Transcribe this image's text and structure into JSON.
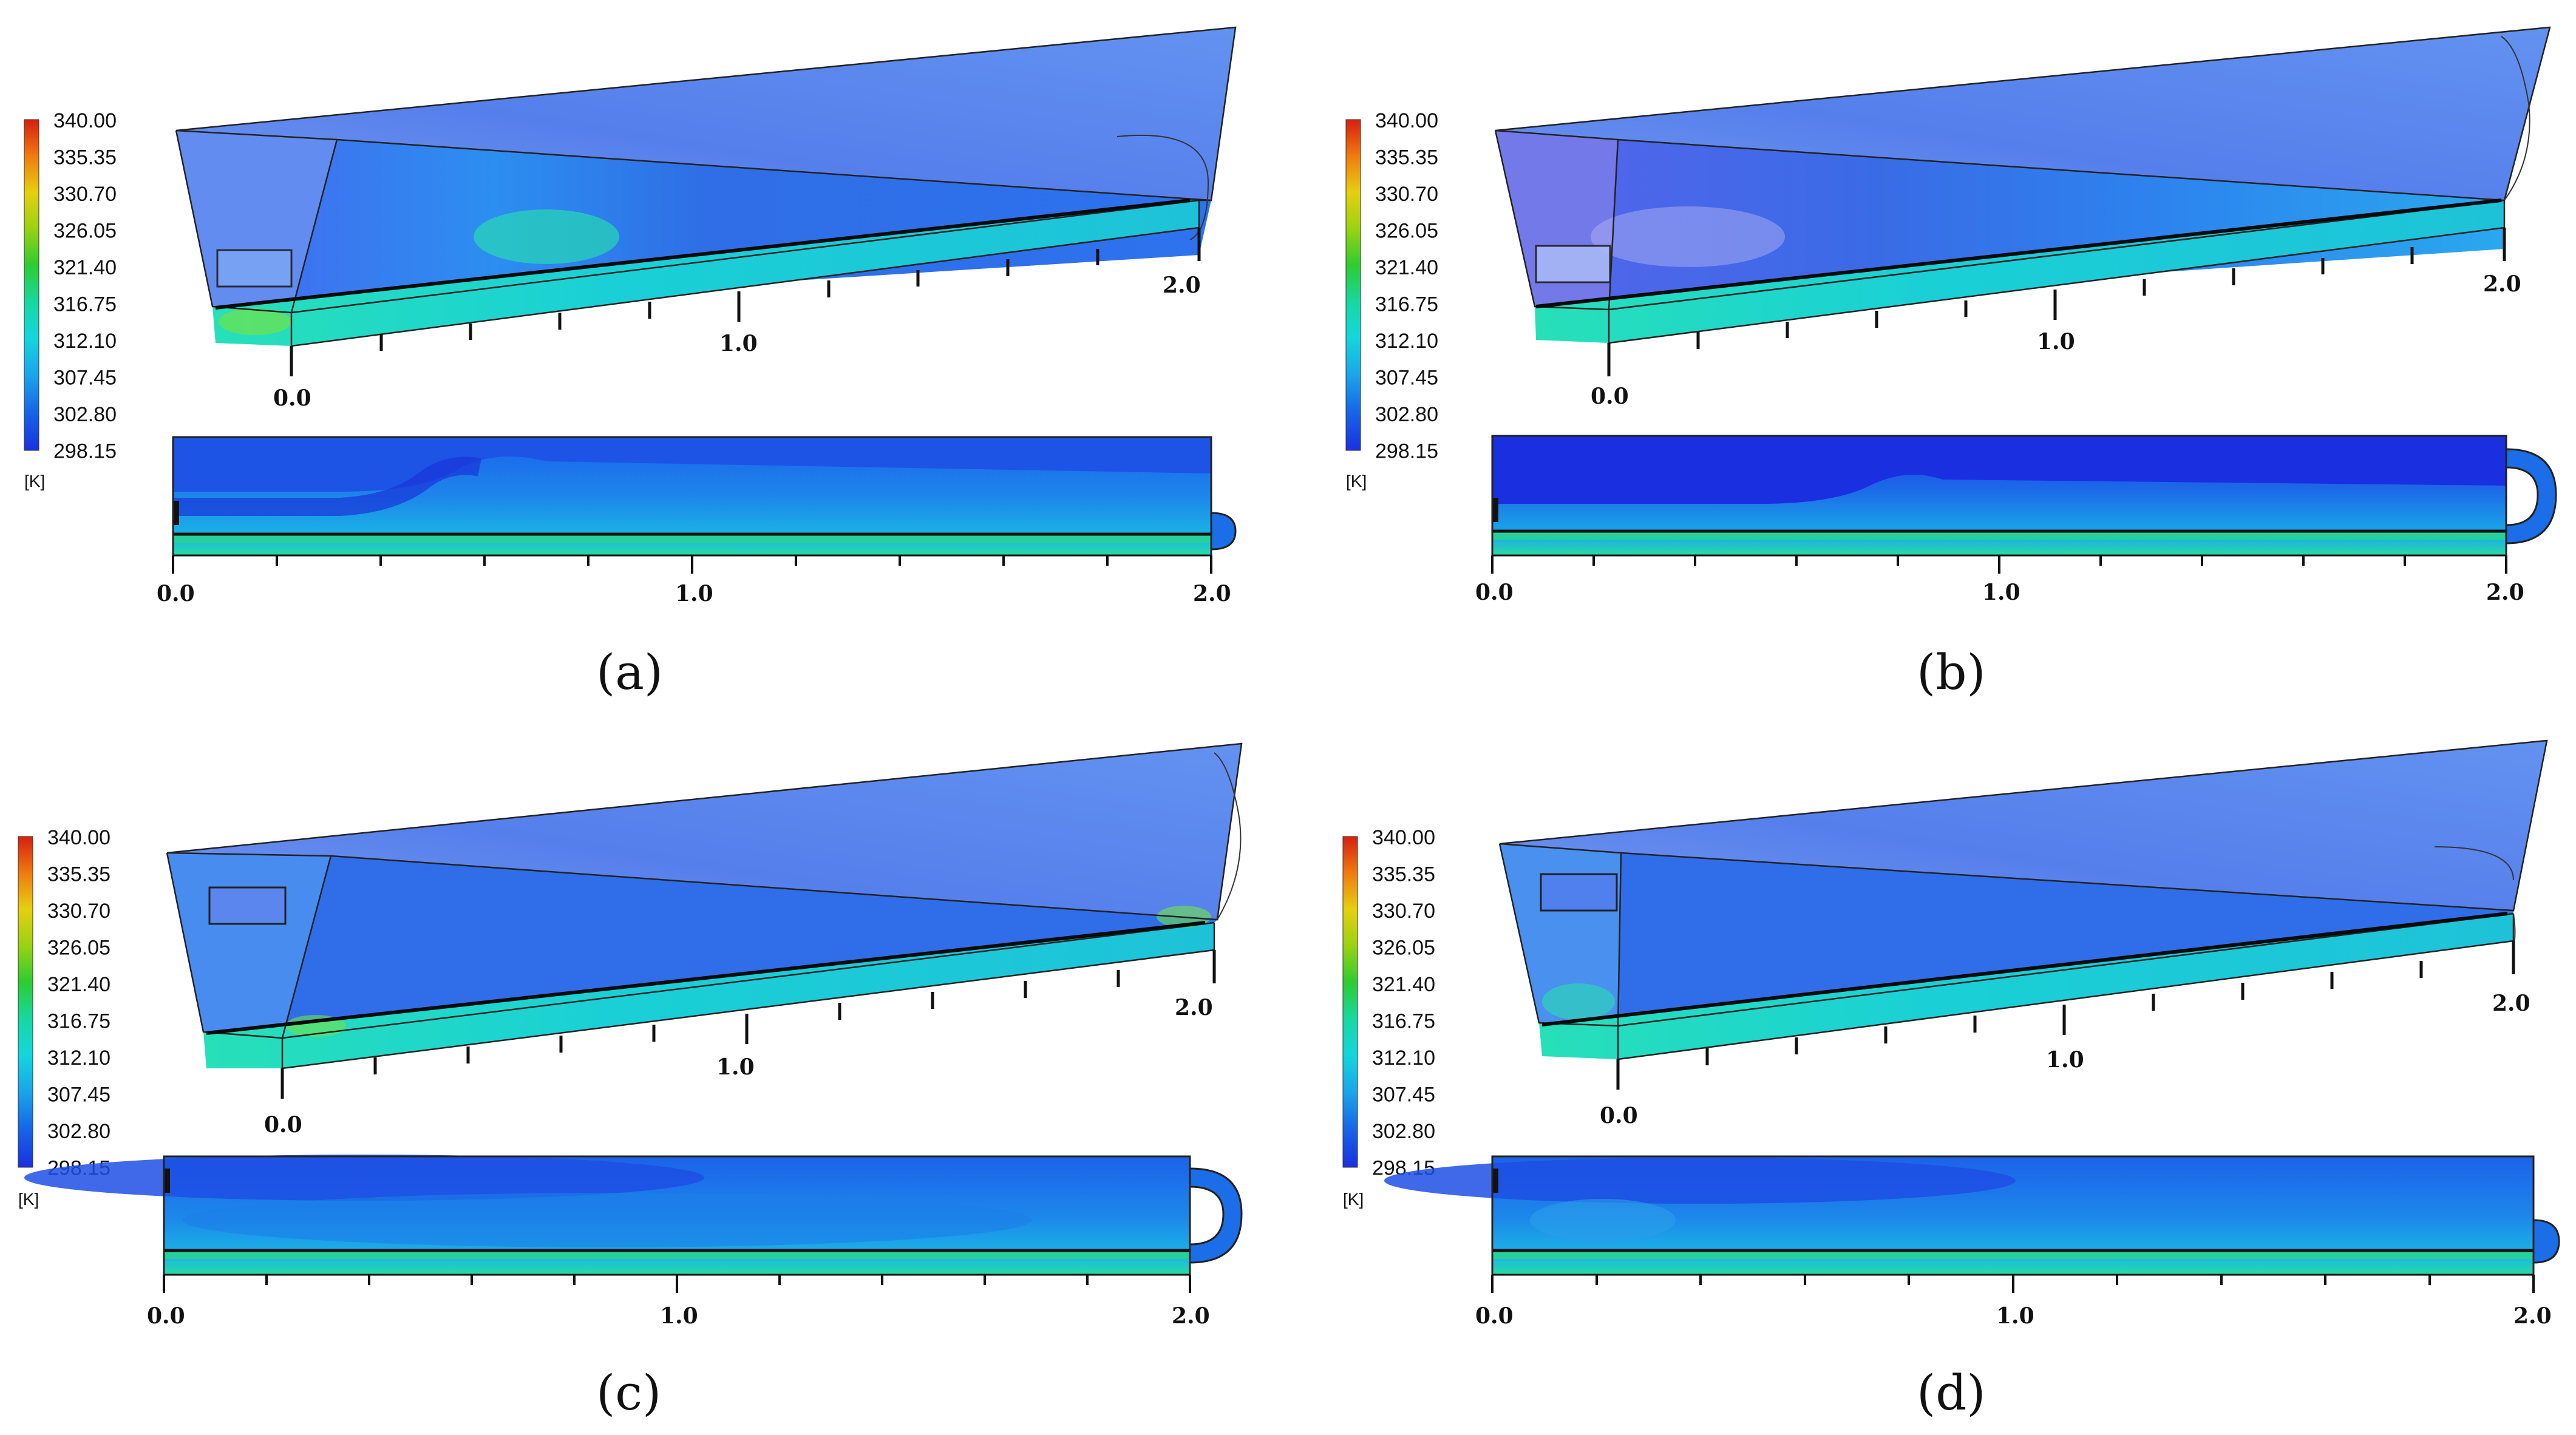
{
  "figure": {
    "panels": [
      {
        "caption": "(a)"
      },
      {
        "caption": "(b)"
      },
      {
        "caption": "(c)"
      },
      {
        "caption": "(d)"
      }
    ],
    "legend": {
      "values": [
        "340.00",
        "335.35",
        "330.70",
        "326.05",
        "321.40",
        "316.75",
        "312.10",
        "307.45",
        "302.80",
        "298.15"
      ],
      "unit": "[K]",
      "colors": [
        "#d61f10",
        "#f07a10",
        "#e5d010",
        "#9ad212",
        "#2ecc30",
        "#17d8a0",
        "#14d6dc",
        "#1aa6ea",
        "#1668e8",
        "#1a2fe0"
      ]
    },
    "axis": {
      "iso_ticks": [
        "0.0",
        "1.0",
        "2.0"
      ],
      "plan_ticks": [
        "0.0",
        "1.0",
        "2.0"
      ]
    }
  }
}
